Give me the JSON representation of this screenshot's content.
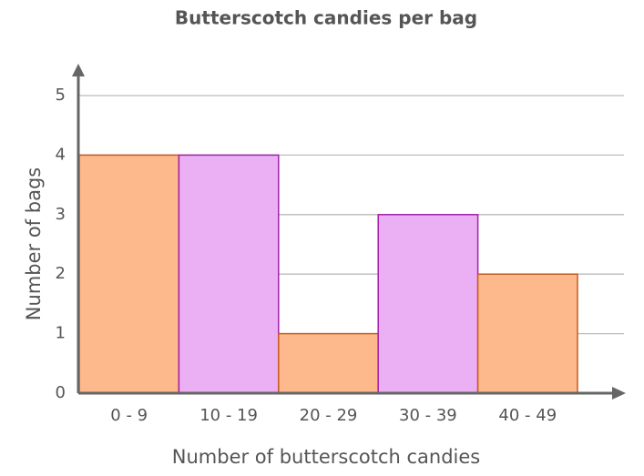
{
  "chart_data": {
    "type": "bar",
    "title": "Butterscotch candies per bag",
    "x_label": "Number of butterscotch candies",
    "y_label": "Number of bags",
    "categories": [
      "0 - 9",
      "10 - 19",
      "20 - 29",
      "30 - 39",
      "40 - 49"
    ],
    "values": [
      4,
      4,
      1,
      3,
      2
    ],
    "colors": [
      "#fdb98b",
      "#ebaff3",
      "#fdb98b",
      "#ebaff3",
      "#fdb98b"
    ],
    "edge_colors": [
      "#c65a1e",
      "#a31fad",
      "#c65a1e",
      "#a31fad",
      "#c65a1e"
    ],
    "ylim": [
      0,
      5
    ],
    "yticks": [
      0,
      1,
      2,
      3,
      4,
      5
    ],
    "grid": true
  }
}
